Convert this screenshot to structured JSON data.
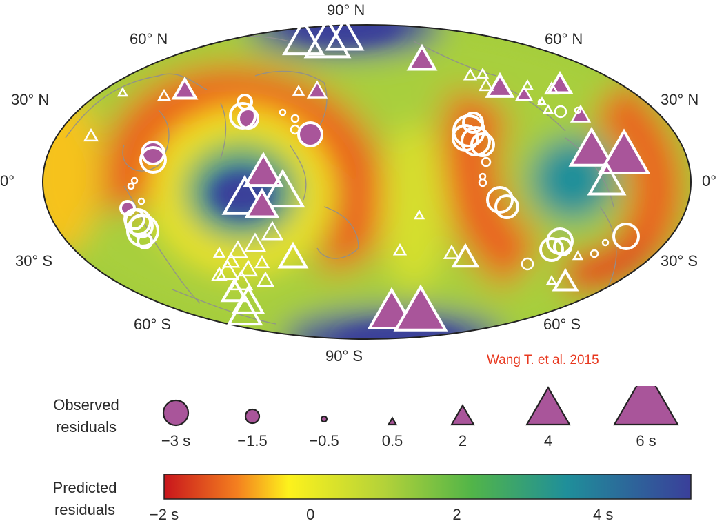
{
  "map": {
    "lat_labels": {
      "top": "90° N",
      "n60_left": "60° N",
      "n60_right": "60° N",
      "n30_left": "30° N",
      "n30_right": "30° N",
      "eq_left": "0°",
      "eq_right": "0°",
      "s30_left": "30° S",
      "s30_right": "30° S",
      "s60_left": "60° S",
      "s60_right": "60° S",
      "bottom": "90° S"
    },
    "credit": "Wang T. et al. 2015",
    "colors": {
      "negative_marker": "#a9559a",
      "positive_marker": "#a9559a",
      "white_marker": "#ffffff",
      "coast": "#8f8f8f"
    }
  },
  "legend_observed": {
    "title_line1": "Observed",
    "title_line2": "residuals",
    "items": [
      {
        "label": "−3 s",
        "value": -3,
        "shape": "circle"
      },
      {
        "label": "−1.5",
        "value": -1.5,
        "shape": "circle"
      },
      {
        "label": "−0.5",
        "value": -0.5,
        "shape": "circle"
      },
      {
        "label": "0.5",
        "value": 0.5,
        "shape": "triangle"
      },
      {
        "label": "2",
        "value": 2,
        "shape": "triangle"
      },
      {
        "label": "4",
        "value": 4,
        "shape": "triangle"
      },
      {
        "label": "6 s",
        "value": 6,
        "shape": "triangle"
      }
    ]
  },
  "legend_predicted": {
    "title_line1": "Predicted",
    "title_line2": "residuals",
    "range": [
      -2,
      5.2
    ],
    "ticks": [
      {
        "label": "−2 s",
        "value": -2
      },
      {
        "label": "0",
        "value": 0
      },
      {
        "label": "2",
        "value": 2
      },
      {
        "label": "4 s",
        "value": 4
      }
    ],
    "stops": [
      {
        "value": -2,
        "color": "#c8151c"
      },
      {
        "value": -1,
        "color": "#f4801f"
      },
      {
        "value": -0.3,
        "color": "#fdf21c"
      },
      {
        "value": 1,
        "color": "#b4d239"
      },
      {
        "value": 2.2,
        "color": "#52b548"
      },
      {
        "value": 3.5,
        "color": "#1f8f9a"
      },
      {
        "value": 5.2,
        "color": "#3a3f9a"
      }
    ]
  }
}
